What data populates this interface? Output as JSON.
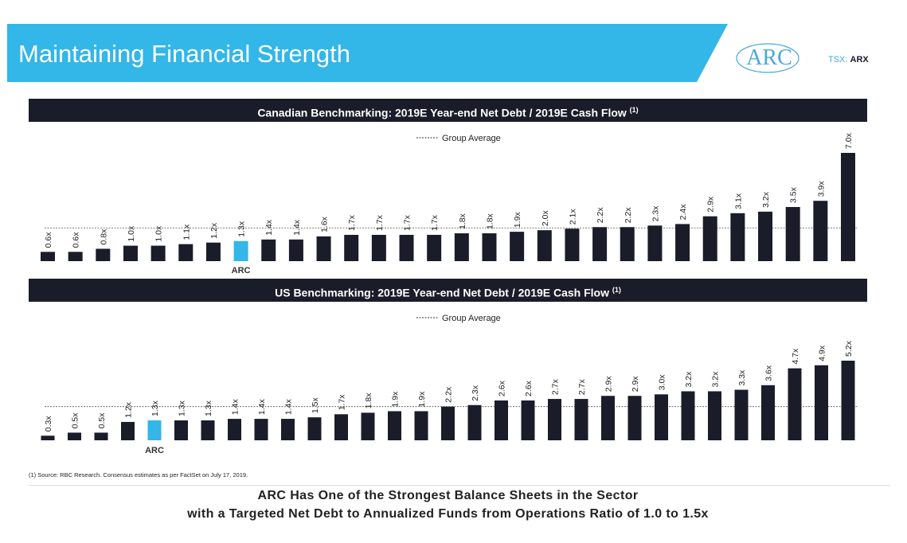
{
  "header": {
    "title": "Maintaining Financial Strength",
    "ticker_prefix": "TSX:",
    "ticker_symbol": "ARX",
    "logo_text": "ARC"
  },
  "colors": {
    "banner": "#33b6e8",
    "bar": "#1b1c29",
    "highlight": "#33b6e8",
    "header_bg": "#1b1c29"
  },
  "chart_data": [
    {
      "type": "bar",
      "title": "Canadian Benchmarking: 2019E Year-end Net Debt / 2019E Cash Flow",
      "title_note": "(1)",
      "legend": "Group Average",
      "legend_placement": "top-center",
      "highlight_label": "ARC",
      "highlight_index": 7,
      "group_average": 2.15,
      "ylim": [
        0,
        7.0
      ],
      "values": [
        0.6,
        0.6,
        0.8,
        1.0,
        1.0,
        1.1,
        1.2,
        1.3,
        1.4,
        1.4,
        1.6,
        1.7,
        1.7,
        1.7,
        1.7,
        1.8,
        1.8,
        1.9,
        2.0,
        2.1,
        2.2,
        2.2,
        2.3,
        2.4,
        2.9,
        3.1,
        3.2,
        3.5,
        3.9,
        7.0
      ],
      "labels": [
        "0.6x",
        "0.6x",
        "0.8x",
        "1.0x",
        "1.0x",
        "1.1x",
        "1.2x",
        "1.3x",
        "1.4x",
        "1.4x",
        "1.6x",
        "1.7x",
        "1.7x",
        "1.7x",
        "1.7x",
        "1.8x",
        "1.8x",
        "1.9x",
        "2.0x",
        "2.1x",
        "2.2x",
        "2.2x",
        "2.3x",
        "2.4x",
        "2.9x",
        "3.1x",
        "3.2x",
        "3.5x",
        "3.9x",
        "7.0x"
      ]
    },
    {
      "type": "bar",
      "title": "US Benchmarking: 2019E Year-end Net Debt / 2019E Cash Flow",
      "title_note": "(1)",
      "legend": "Group Average",
      "legend_placement": "top-center",
      "highlight_label": "ARC",
      "highlight_index": 4,
      "group_average": 2.2,
      "ylim": [
        0,
        5.2
      ],
      "values": [
        0.3,
        0.5,
        0.5,
        1.2,
        1.3,
        1.3,
        1.3,
        1.4,
        1.4,
        1.4,
        1.5,
        1.7,
        1.8,
        1.9,
        1.9,
        2.2,
        2.3,
        2.6,
        2.6,
        2.7,
        2.7,
        2.9,
        2.9,
        3.0,
        3.2,
        3.2,
        3.3,
        3.6,
        4.7,
        4.9,
        5.2
      ],
      "labels": [
        "0.3x",
        "0.5x",
        "0.5x",
        "1.2x",
        "1.3x",
        "1.3x",
        "1.3x",
        "1.4x",
        "1.4x",
        "1.4x",
        "1.5x",
        "1.7x",
        "1.8x",
        "1.9x",
        "1.9x",
        "2.2x",
        "2.3x",
        "2.6x",
        "2.6x",
        "2.7x",
        "2.7x",
        "2.9x",
        "2.9x",
        "3.0x",
        "3.2x",
        "3.2x",
        "3.3x",
        "3.6x",
        "4.7x",
        "4.9x",
        "5.2x"
      ]
    }
  ],
  "footnote": "(1)   Source: RBC Research. Consensus estimates as per FactSet on July 17, 2019.",
  "conclusion": {
    "line1": "ARC Has One of the Strongest Balance Sheets in the Sector",
    "line2": "with a Targeted Net Debt to Annualized Funds from Operations Ratio of 1.0 to 1.5x"
  }
}
